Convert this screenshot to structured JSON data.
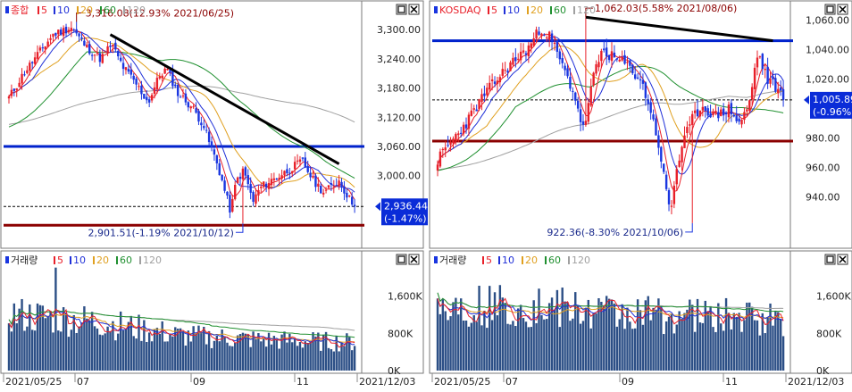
{
  "colors": {
    "up": "#e8202a",
    "down": "#1a36e0",
    "ma5": "#e8202a",
    "ma10": "#2030d8",
    "ma20": "#e0a020",
    "ma60": "#209030",
    "ma120": "#a0a0a0",
    "volume": "#2c4f86",
    "trend": "#000000",
    "support": "#8b0000",
    "resistance": "#0022cc",
    "price_badge": "#0a2cd8"
  },
  "legend_numbers": [
    "5",
    "10",
    "20",
    "60",
    "120"
  ],
  "panels": [
    {
      "price_title": "종합",
      "volume_title": "거래량",
      "high_annotation": "3,316.08(12.93% 2021/06/25)",
      "low_annotation": "2,901.51(-1.19% 2021/10/12)",
      "price_axis": [
        "3,300.00",
        "3,240.00",
        "3,180.00",
        "3,120.00",
        "3,060.00",
        "3,000.00"
      ],
      "volume_axis": [
        "1,600K",
        "800K",
        "0K"
      ],
      "current_price": "2,936.44",
      "current_change": "(-1.47%)",
      "x_labels": [
        "2021/05/25",
        "07",
        "09",
        "11",
        "2021/12/03"
      ]
    },
    {
      "price_title": "KOSDAQ",
      "volume_title": "거래량",
      "high_annotation": "1,062.03(5.58% 2021/08/06)",
      "low_annotation": "922.36(-8.30% 2021/10/06)",
      "price_axis": [
        "1,060.00",
        "1,040.00",
        "1,020.00",
        "980.00",
        "960.00",
        "940.00"
      ],
      "volume_axis": [
        "1,600K",
        "800K",
        "0K"
      ],
      "current_price": "1,005.89",
      "current_change": "(-0.96%)",
      "x_labels": [
        "2021/05/25",
        "07",
        "09",
        "11",
        "2021/12/03"
      ]
    }
  ],
  "chart_data": [
    {
      "type": "candlestick",
      "title": "종합",
      "x_range": [
        "2021/05/25",
        "2021/12/03"
      ],
      "y_ticks": [
        3000,
        3060,
        3120,
        3180,
        3240,
        3300
      ],
      "ylim": [
        2880,
        3350
      ],
      "high": {
        "value": 3316.08,
        "date": "2021/06/25"
      },
      "low": {
        "value": 2901.51,
        "date": "2021/10/12"
      },
      "last": 2936.44,
      "horizontal_lines": {
        "resistance": 3060,
        "support": 2898,
        "current": 2936.44
      },
      "trend_line": [
        {
          "date": "2021/07/06",
          "value": 3290
        },
        {
          "date": "2021/11/24",
          "value": 3024
        }
      ],
      "volume": {
        "y_ticks": [
          0,
          800,
          1600
        ],
        "ylim": [
          0,
          2400
        ],
        "unit": "K"
      },
      "moving_averages": [
        "5",
        "10",
        "20",
        "60",
        "120"
      ]
    },
    {
      "type": "candlestick",
      "title": "KOSDAQ",
      "x_range": [
        "2021/05/25",
        "2021/12/03"
      ],
      "y_ticks": [
        940,
        960,
        980,
        1020,
        1040,
        1060
      ],
      "ylim": [
        915,
        1070
      ],
      "high": {
        "value": 1062.03,
        "date": "2021/08/06"
      },
      "low": {
        "value": 922.36,
        "date": "2021/10/06"
      },
      "last": 1005.89,
      "horizontal_lines": {
        "resistance": 1046,
        "support": 978,
        "current": 1005.89
      },
      "trend_line": [
        {
          "date": "2021/08/06",
          "value": 1062
        },
        {
          "date": "2021/11/19",
          "value": 1046
        }
      ],
      "volume": {
        "y_ticks": [
          0,
          800,
          1600
        ],
        "ylim": [
          0,
          2400
        ],
        "unit": "K"
      },
      "moving_averages": [
        "5",
        "10",
        "20",
        "60",
        "120"
      ]
    }
  ]
}
